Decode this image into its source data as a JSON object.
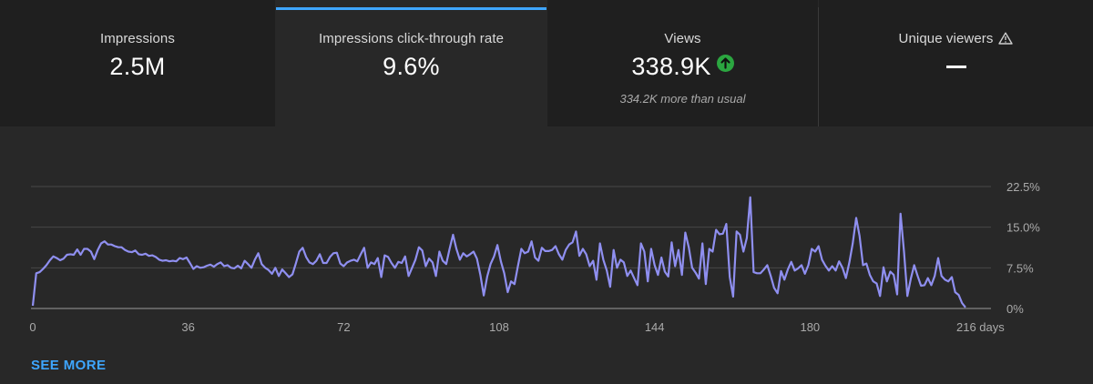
{
  "metrics": [
    {
      "label": "Impressions",
      "value": "2.5M",
      "note": "",
      "active": false
    },
    {
      "label": "Impressions click-through rate",
      "value": "9.6%",
      "note": "",
      "active": true
    },
    {
      "label": "Views",
      "value": "338.9K",
      "note": "334.2K more than usual",
      "active": false,
      "icon": "trend-up-icon"
    },
    {
      "label": "Unique viewers",
      "value": "—",
      "note": "",
      "active": false,
      "icon": "warning-icon"
    }
  ],
  "chart_data": {
    "type": "line",
    "title": "",
    "xlabel": "",
    "ylabel": "",
    "xlim": [
      0,
      216
    ],
    "ylim": [
      0,
      22.5
    ],
    "x_ticks": [
      0,
      36,
      72,
      108,
      144,
      180,
      216
    ],
    "x_tick_labels": [
      "0",
      "36",
      "72",
      "108",
      "144",
      "180",
      "216 days"
    ],
    "y_ticks": [
      0,
      7.5,
      15,
      22.5
    ],
    "y_tick_labels": [
      "0%",
      "7.5%",
      "15.0%",
      "22.5%"
    ],
    "grid": true,
    "color": "#8f8ff0",
    "series": [
      {
        "name": "",
        "values": [
          0.5,
          6.5,
          6.7,
          7.3,
          8.0,
          8.9,
          9.6,
          9.3,
          8.9,
          9.2,
          9.9,
          10.0,
          9.9,
          10.9,
          9.9,
          11.0,
          11.0,
          10.5,
          9.1,
          10.8,
          12.0,
          12.4,
          11.8,
          11.8,
          11.5,
          11.3,
          11.3,
          10.8,
          10.5,
          10.4,
          10.7,
          10.0,
          9.9,
          10.1,
          9.7,
          9.8,
          9.5,
          9.0,
          8.8,
          8.9,
          8.7,
          8.8,
          8.7,
          9.3,
          9.1,
          9.4,
          8.4,
          7.3,
          7.8,
          7.5,
          7.6,
          7.9,
          8.1,
          7.7,
          8.2,
          8.5,
          7.8,
          8.0,
          7.5,
          7.4,
          7.9,
          7.4,
          8.8,
          8.2,
          7.5,
          9.0,
          10.2,
          8.2,
          7.5,
          7.1,
          6.4,
          7.5,
          6.0,
          7.2,
          6.5,
          5.8,
          6.3,
          8.3,
          10.5,
          11.2,
          9.5,
          8.5,
          8.2,
          8.8,
          10.0,
          8.4,
          8.4,
          9.5,
          10.2,
          10.3,
          8.3,
          7.8,
          8.5,
          8.8,
          9.0,
          8.7,
          10.0,
          11.2,
          7.5,
          8.5,
          8.2,
          9.3,
          5.8,
          9.8,
          9.5,
          8.4,
          7.5,
          8.6,
          8.4,
          9.6,
          6.0,
          7.5,
          9.0,
          11.3,
          10.7,
          7.8,
          9.2,
          8.5,
          6.0,
          10.5,
          8.8,
          8.2,
          11.0,
          13.6,
          11.0,
          9.0,
          10.2,
          9.6,
          10.0,
          10.5,
          9.2,
          6.2,
          2.4,
          5.9,
          8.2,
          9.6,
          11.7,
          8.7,
          6.5,
          3.0,
          5.0,
          4.5,
          7.8,
          11.0,
          10.2,
          10.5,
          12.4,
          9.4,
          8.8,
          11.2,
          10.6,
          10.6,
          10.8,
          11.5,
          10.0,
          9.0,
          10.8,
          11.8,
          12.2,
          14.2,
          9.7,
          11.0,
          10.0,
          7.8,
          8.8,
          5.3,
          12.0,
          9.0,
          7.0,
          4.0,
          10.8,
          7.5,
          9.0,
          8.5,
          6.0,
          7.0,
          5.6,
          4.3,
          12.0,
          10.5,
          5.0,
          11.0,
          8.0,
          6.2,
          9.4,
          6.8,
          5.9,
          12.2,
          7.8,
          10.8,
          6.2,
          14.0,
          11.3,
          7.5,
          6.6,
          5.5,
          12.0,
          4.5,
          11.0,
          10.5,
          14.5,
          13.7,
          13.8,
          15.6,
          5.8,
          2.2,
          14.2,
          13.6,
          10.5,
          13.0,
          20.5,
          6.7,
          6.5,
          6.5,
          7.2,
          8.0,
          6.0,
          3.8,
          2.8,
          6.9,
          5.3,
          7.2,
          8.6,
          7.0,
          7.4,
          8.0,
          6.4,
          8.0,
          11.0,
          10.5,
          11.5,
          9.0,
          7.9,
          7.0,
          7.8,
          7.0,
          8.7,
          7.5,
          5.6,
          8.5,
          12.0,
          16.7,
          13.4,
          8.0,
          8.3,
          6.2,
          5.0,
          4.6,
          2.3,
          7.6,
          5.0,
          6.8,
          6.2,
          2.6,
          17.5,
          10.5,
          2.3,
          5.5,
          8.0,
          6.0,
          4.2,
          4.3,
          5.6,
          4.3,
          6.0,
          9.3,
          6.0,
          5.3,
          5.0,
          5.8,
          3.0,
          2.5,
          1.0,
          0.2
        ]
      }
    ]
  },
  "footer": {
    "see_more_label": "SEE MORE"
  }
}
